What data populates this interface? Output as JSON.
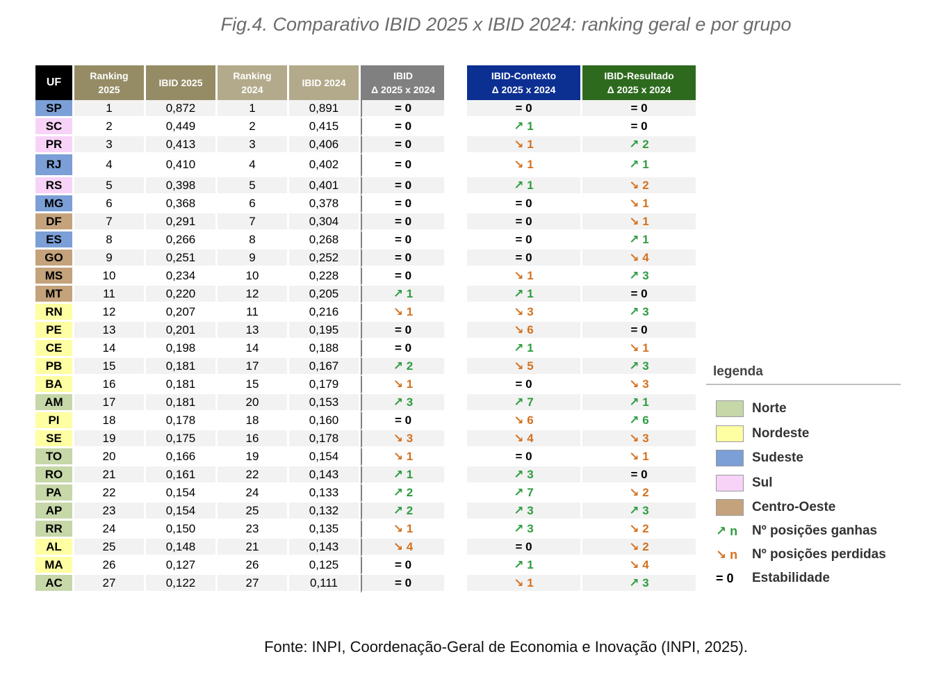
{
  "title": "Fig.4. Comparativo IBID 2025 x IBID 2024: ranking geral e por grupo",
  "source": "Fonte: INPI, Coordenação-Geral de Economia e Inovação (INPI, 2025).",
  "colors": {
    "norte": "#c6d7a8",
    "nordeste": "#fefea2",
    "sudeste": "#7b9fd6",
    "sul": "#f7d3f7",
    "centro_oeste": "#c4a27c",
    "up": "#2e9c3f",
    "down": "#d4711f",
    "header_uf": "#000000",
    "header_rank2025": "#958c65",
    "header_rank2024": "#b2aa8a",
    "header_ibid": "#808080",
    "header_contexto": "#0c2f92",
    "header_resultado": "#2d6a1e"
  },
  "headers": {
    "uf": "UF",
    "ranking_2025": [
      "Ranking",
      "2025"
    ],
    "ibid_2025": "IBID 2025",
    "ranking_2024": [
      "Ranking",
      "2024"
    ],
    "ibid_2024": "IBID 2024",
    "ibid_delta": [
      "IBID",
      "Δ  2025 x 2024"
    ],
    "contexto_delta": [
      "IBID-Contexto",
      "Δ 2025  x 2024"
    ],
    "resultado_delta": [
      "IBID-Resultado",
      "Δ 2025  x 2024"
    ]
  },
  "rows": [
    {
      "uf": "SP",
      "region": "sudeste",
      "rank2025": "1",
      "ibid2025": "0,872",
      "rank2024": "1",
      "ibid2024": "0,891",
      "ibid_delta": "= 0",
      "ibid_dir": "eq",
      "ctx_delta": "= 0",
      "ctx_dir": "eq",
      "res_delta": "= 0",
      "res_dir": "eq"
    },
    {
      "uf": "SC",
      "region": "sul",
      "rank2025": "2",
      "ibid2025": "0,449",
      "rank2024": "2",
      "ibid2024": "0,415",
      "ibid_delta": "= 0",
      "ibid_dir": "eq",
      "ctx_delta": "↗ 1",
      "ctx_dir": "up",
      "res_delta": "= 0",
      "res_dir": "eq"
    },
    {
      "uf": "PR",
      "region": "sul",
      "rank2025": "3",
      "ibid2025": "0,413",
      "rank2024": "3",
      "ibid2024": "0,406",
      "ibid_delta": "= 0",
      "ibid_dir": "eq",
      "ctx_delta": "↘ 1",
      "ctx_dir": "down",
      "res_delta": "↗ 2",
      "res_dir": "up"
    },
    {
      "uf": "RJ",
      "region": "sudeste",
      "rank2025": "4",
      "ibid2025": "0,410",
      "rank2024": "4",
      "ibid2024": "0,402",
      "ibid_delta": "= 0",
      "ibid_dir": "eq",
      "ctx_delta": "↘ 1",
      "ctx_dir": "down",
      "res_delta": "↗ 1",
      "res_dir": "up"
    },
    {
      "uf": "RS",
      "region": "sul",
      "rank2025": "5",
      "ibid2025": "0,398",
      "rank2024": "5",
      "ibid2024": "0,401",
      "ibid_delta": "= 0",
      "ibid_dir": "eq",
      "ctx_delta": "↗ 1",
      "ctx_dir": "up",
      "res_delta": "↘ 2",
      "res_dir": "down"
    },
    {
      "uf": "MG",
      "region": "sudeste",
      "rank2025": "6",
      "ibid2025": "0,368",
      "rank2024": "6",
      "ibid2024": "0,378",
      "ibid_delta": "= 0",
      "ibid_dir": "eq",
      "ctx_delta": "= 0",
      "ctx_dir": "eq",
      "res_delta": "↘ 1",
      "res_dir": "down"
    },
    {
      "uf": "DF",
      "region": "co",
      "rank2025": "7",
      "ibid2025": "0,291",
      "rank2024": "7",
      "ibid2024": "0,304",
      "ibid_delta": "= 0",
      "ibid_dir": "eq",
      "ctx_delta": "= 0",
      "ctx_dir": "eq",
      "res_delta": "↘ 1",
      "res_dir": "down"
    },
    {
      "uf": "ES",
      "region": "sudeste",
      "rank2025": "8",
      "ibid2025": "0,266",
      "rank2024": "8",
      "ibid2024": "0,268",
      "ibid_delta": "= 0",
      "ibid_dir": "eq",
      "ctx_delta": "= 0",
      "ctx_dir": "eq",
      "res_delta": "↗ 1",
      "res_dir": "up"
    },
    {
      "uf": "GO",
      "region": "co",
      "rank2025": "9",
      "ibid2025": "0,251",
      "rank2024": "9",
      "ibid2024": "0,252",
      "ibid_delta": "= 0",
      "ibid_dir": "eq",
      "ctx_delta": "= 0",
      "ctx_dir": "eq",
      "res_delta": "↘ 4",
      "res_dir": "down"
    },
    {
      "uf": "MS",
      "region": "co",
      "rank2025": "10",
      "ibid2025": "0,234",
      "rank2024": "10",
      "ibid2024": "0,228",
      "ibid_delta": "= 0",
      "ibid_dir": "eq",
      "ctx_delta": "↘ 1",
      "ctx_dir": "down",
      "res_delta": "↗ 3",
      "res_dir": "up"
    },
    {
      "uf": "MT",
      "region": "co",
      "rank2025": "11",
      "ibid2025": "0,220",
      "rank2024": "12",
      "ibid2024": "0,205",
      "ibid_delta": "↗ 1",
      "ibid_dir": "up",
      "ctx_delta": "↗ 1",
      "ctx_dir": "up",
      "res_delta": "= 0",
      "res_dir": "eq"
    },
    {
      "uf": "RN",
      "region": "nordeste",
      "rank2025": "12",
      "ibid2025": "0,207",
      "rank2024": "11",
      "ibid2024": "0,216",
      "ibid_delta": "↘ 1",
      "ibid_dir": "down",
      "ctx_delta": "↘ 3",
      "ctx_dir": "down",
      "res_delta": "↗ 3",
      "res_dir": "up"
    },
    {
      "uf": "PE",
      "region": "nordeste",
      "rank2025": "13",
      "ibid2025": "0,201",
      "rank2024": "13",
      "ibid2024": "0,195",
      "ibid_delta": "= 0",
      "ibid_dir": "eq",
      "ctx_delta": "↘ 6",
      "ctx_dir": "down",
      "res_delta": "= 0",
      "res_dir": "eq"
    },
    {
      "uf": "CE",
      "region": "nordeste",
      "rank2025": "14",
      "ibid2025": "0,198",
      "rank2024": "14",
      "ibid2024": "0,188",
      "ibid_delta": "= 0",
      "ibid_dir": "eq",
      "ctx_delta": "↗ 1",
      "ctx_dir": "up",
      "res_delta": "↘ 1",
      "res_dir": "down"
    },
    {
      "uf": "PB",
      "region": "nordeste",
      "rank2025": "15",
      "ibid2025": "0,181",
      "rank2024": "17",
      "ibid2024": "0,167",
      "ibid_delta": "↗ 2",
      "ibid_dir": "up",
      "ctx_delta": "↘ 5",
      "ctx_dir": "down",
      "res_delta": "↗ 3",
      "res_dir": "up"
    },
    {
      "uf": "BA",
      "region": "nordeste",
      "rank2025": "16",
      "ibid2025": "0,181",
      "rank2024": "15",
      "ibid2024": "0,179",
      "ibid_delta": "↘ 1",
      "ibid_dir": "down",
      "ctx_delta": "= 0",
      "ctx_dir": "eq",
      "res_delta": "↘ 3",
      "res_dir": "down"
    },
    {
      "uf": "AM",
      "region": "norte",
      "rank2025": "17",
      "ibid2025": "0,181",
      "rank2024": "20",
      "ibid2024": "0,153",
      "ibid_delta": "↗ 3",
      "ibid_dir": "up",
      "ctx_delta": "↗ 7",
      "ctx_dir": "up",
      "res_delta": "↗ 1",
      "res_dir": "up"
    },
    {
      "uf": "PI",
      "region": "nordeste",
      "rank2025": "18",
      "ibid2025": "0,178",
      "rank2024": "18",
      "ibid2024": "0,160",
      "ibid_delta": "= 0",
      "ibid_dir": "eq",
      "ctx_delta": "↘ 6",
      "ctx_dir": "down",
      "res_delta": "↗ 6",
      "res_dir": "up"
    },
    {
      "uf": "SE",
      "region": "nordeste",
      "rank2025": "19",
      "ibid2025": "0,175",
      "rank2024": "16",
      "ibid2024": "0,178",
      "ibid_delta": "↘ 3",
      "ibid_dir": "down",
      "ctx_delta": "↘ 4",
      "ctx_dir": "down",
      "res_delta": "↘ 3",
      "res_dir": "down"
    },
    {
      "uf": "TO",
      "region": "norte",
      "rank2025": "20",
      "ibid2025": "0,166",
      "rank2024": "19",
      "ibid2024": "0,154",
      "ibid_delta": "↘ 1",
      "ibid_dir": "down",
      "ctx_delta": "= 0",
      "ctx_dir": "eq",
      "res_delta": "↘ 1",
      "res_dir": "down"
    },
    {
      "uf": "RO",
      "region": "norte",
      "rank2025": "21",
      "ibid2025": "0,161",
      "rank2024": "22",
      "ibid2024": "0,143",
      "ibid_delta": "↗ 1",
      "ibid_dir": "up",
      "ctx_delta": "↗ 3",
      "ctx_dir": "up",
      "res_delta": "= 0",
      "res_dir": "eq"
    },
    {
      "uf": "PA",
      "region": "norte",
      "rank2025": "22",
      "ibid2025": "0,154",
      "rank2024": "24",
      "ibid2024": "0,133",
      "ibid_delta": "↗ 2",
      "ibid_dir": "up",
      "ctx_delta": "↗ 7",
      "ctx_dir": "up",
      "res_delta": "↘ 2",
      "res_dir": "down"
    },
    {
      "uf": "AP",
      "region": "norte",
      "rank2025": "23",
      "ibid2025": "0,154",
      "rank2024": "25",
      "ibid2024": "0,132",
      "ibid_delta": "↗ 2",
      "ibid_dir": "up",
      "ctx_delta": "↗ 3",
      "ctx_dir": "up",
      "res_delta": "↗ 3",
      "res_dir": "up"
    },
    {
      "uf": "RR",
      "region": "norte",
      "rank2025": "24",
      "ibid2025": "0,150",
      "rank2024": "23",
      "ibid2024": "0,135",
      "ibid_delta": "↘ 1",
      "ibid_dir": "down",
      "ctx_delta": "↗ 3",
      "ctx_dir": "up",
      "res_delta": "↘ 2",
      "res_dir": "down"
    },
    {
      "uf": "AL",
      "region": "nordeste",
      "rank2025": "25",
      "ibid2025": "0,148",
      "rank2024": "21",
      "ibid2024": "0,143",
      "ibid_delta": "↘ 4",
      "ibid_dir": "down",
      "ctx_delta": "= 0",
      "ctx_dir": "eq",
      "res_delta": "↘ 2",
      "res_dir": "down"
    },
    {
      "uf": "MA",
      "region": "nordeste",
      "rank2025": "26",
      "ibid2025": "0,127",
      "rank2024": "26",
      "ibid2024": "0,125",
      "ibid_delta": "= 0",
      "ibid_dir": "eq",
      "ctx_delta": "↗ 1",
      "ctx_dir": "up",
      "res_delta": "↘ 4",
      "res_dir": "down"
    },
    {
      "uf": "AC",
      "region": "norte",
      "rank2025": "27",
      "ibid2025": "0,122",
      "rank2024": "27",
      "ibid2024": "0,111",
      "ibid_delta": "= 0",
      "ibid_dir": "eq",
      "ctx_delta": "↘ 1",
      "ctx_dir": "down",
      "res_delta": "↗ 3",
      "res_dir": "up"
    }
  ],
  "legend": {
    "title": "legenda",
    "regions": [
      {
        "key": "norte",
        "label": "Norte"
      },
      {
        "key": "nordeste",
        "label": "Nordeste"
      },
      {
        "key": "sudeste",
        "label": "Sudeste"
      },
      {
        "key": "sul",
        "label": "Sul"
      },
      {
        "key": "co",
        "label": "Centro-Oeste"
      }
    ],
    "symbols": [
      {
        "symbol": "↗ n",
        "dir": "up",
        "label": "Nº posições ganhas"
      },
      {
        "symbol": "↘ n",
        "dir": "down",
        "label": "Nº posições perdidas"
      },
      {
        "symbol": "= 0",
        "dir": "eq",
        "label": "Estabilidade"
      }
    ]
  }
}
